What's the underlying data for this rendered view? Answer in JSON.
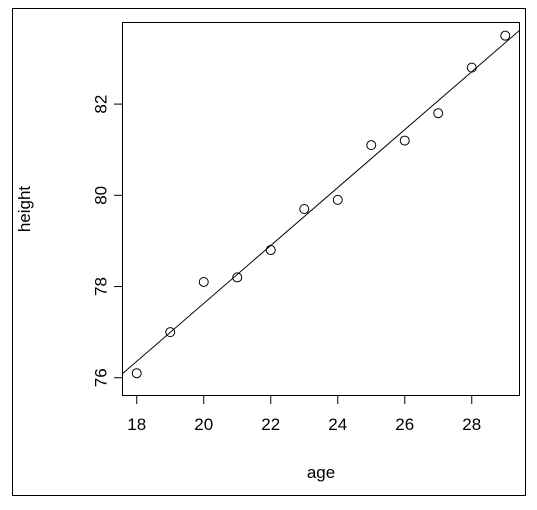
{
  "chart_data": {
    "type": "scatter",
    "x_label": "age",
    "y_label": "height",
    "x": [
      18,
      19,
      20,
      21,
      22,
      23,
      24,
      25,
      26,
      27,
      28,
      29
    ],
    "values": [
      76.1,
      77.0,
      78.1,
      78.2,
      78.8,
      79.7,
      79.9,
      81.1,
      81.2,
      81.8,
      82.8,
      83.5
    ],
    "xlim": [
      17.56,
      29.44
    ],
    "ylim": [
      75.6,
      83.8
    ],
    "xticks": [
      18,
      20,
      22,
      24,
      26,
      28
    ],
    "yticks": [
      76,
      78,
      80,
      82
    ],
    "trend_line": {
      "intercept": 64.93,
      "slope": 0.635
    },
    "color": "#000000"
  }
}
